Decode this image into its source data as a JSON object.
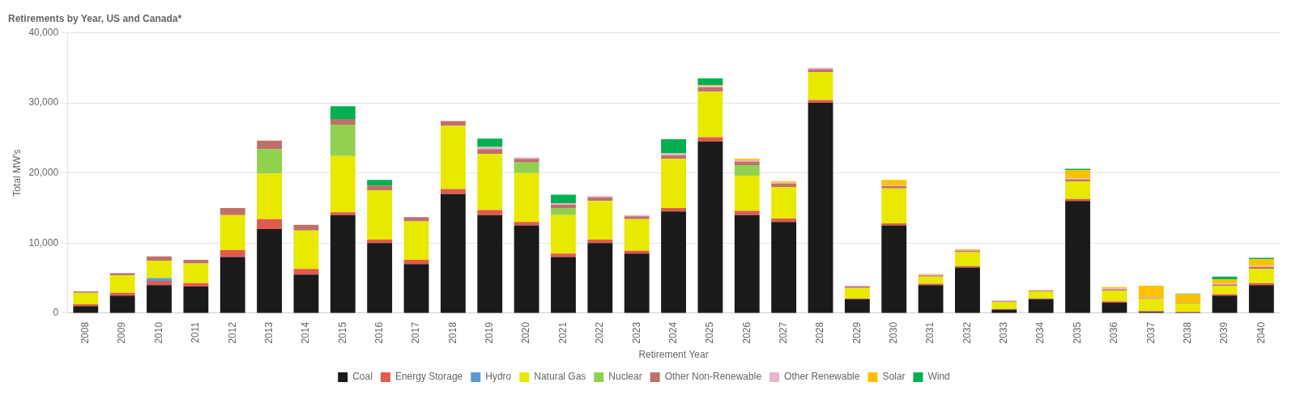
{
  "chart_data": {
    "type": "bar",
    "stacked": true,
    "title": "Retirements by Year, US and Canada*",
    "xlabel": "Retirement Year",
    "ylabel": "Total MW's",
    "categories": [
      2008,
      2009,
      2010,
      2011,
      2012,
      2013,
      2014,
      2015,
      2016,
      2017,
      2018,
      2019,
      2020,
      2021,
      2022,
      2023,
      2024,
      2025,
      2026,
      2027,
      2028,
      2029,
      2030,
      2031,
      2032,
      2033,
      2034,
      2035,
      2036,
      2037,
      2038,
      2039,
      2040
    ],
    "series": [
      {
        "name": "Coal",
        "color": "#1a1a1a",
        "values": [
          1000,
          2500,
          4000,
          3800,
          8000,
          12000,
          5500,
          14000,
          10000,
          7000,
          17000,
          14000,
          12500,
          8000,
          10000,
          8500,
          14500,
          24500,
          14000,
          13000,
          30000,
          2000,
          12500,
          4000,
          6500,
          500,
          2000,
          16000,
          1500,
          200,
          100,
          2500,
          4000
        ]
      },
      {
        "name": "Energy Storage",
        "color": "#e05a4e",
        "values": [
          300,
          400,
          600,
          500,
          1000,
          1400,
          800,
          400,
          500,
          600,
          700,
          700,
          500,
          500,
          500,
          400,
          500,
          600,
          600,
          500,
          400,
          100,
          300,
          200,
          200,
          100,
          100,
          300,
          200,
          100,
          100,
          200,
          300
        ]
      },
      {
        "name": "Hydro",
        "color": "#5b9bd5",
        "values": [
          0,
          0,
          400,
          0,
          0,
          0,
          0,
          0,
          0,
          0,
          0,
          0,
          0,
          0,
          0,
          0,
          0,
          0,
          0,
          0,
          0,
          0,
          0,
          0,
          0,
          0,
          0,
          0,
          0,
          0,
          0,
          0,
          0
        ]
      },
      {
        "name": "Natural Gas",
        "color": "#e8e800",
        "values": [
          1600,
          2500,
          2500,
          2800,
          5000,
          6500,
          5500,
          8000,
          7000,
          5500,
          9000,
          8000,
          7000,
          5500,
          5500,
          4500,
          7000,
          6500,
          5000,
          4500,
          4000,
          1500,
          5000,
          1000,
          2000,
          1000,
          1000,
          2500,
          1500,
          1800,
          1200,
          1200,
          2000
        ]
      },
      {
        "name": "Nuclear",
        "color": "#92d050",
        "values": [
          0,
          0,
          0,
          0,
          0,
          3500,
          0,
          4500,
          0,
          0,
          0,
          0,
          1500,
          1000,
          0,
          0,
          0,
          0,
          1500,
          0,
          0,
          0,
          0,
          0,
          0,
          0,
          0,
          0,
          0,
          0,
          0,
          0,
          0
        ]
      },
      {
        "name": "Other Non-Renewable",
        "color": "#c0706a",
        "values": [
          200,
          300,
          600,
          500,
          1000,
          1200,
          800,
          800,
          700,
          600,
          700,
          700,
          500,
          500,
          500,
          400,
          500,
          600,
          500,
          500,
          400,
          200,
          300,
          200,
          200,
          100,
          100,
          300,
          200,
          100,
          100,
          200,
          300
        ]
      },
      {
        "name": "Other Renewable",
        "color": "#e8b4d0",
        "values": [
          0,
          0,
          0,
          0,
          0,
          0,
          0,
          0,
          0,
          0,
          0,
          300,
          200,
          200,
          200,
          200,
          300,
          200,
          200,
          100,
          200,
          100,
          100,
          100,
          100,
          100,
          100,
          100,
          100,
          100,
          0,
          100,
          100
        ]
      },
      {
        "name": "Solar",
        "color": "#ffc000",
        "values": [
          0,
          0,
          0,
          0,
          0,
          0,
          0,
          0,
          0,
          0,
          0,
          0,
          0,
          0,
          0,
          0,
          0,
          100,
          200,
          200,
          0,
          0,
          800,
          100,
          100,
          0,
          0,
          1200,
          200,
          1600,
          1200,
          600,
          1000
        ]
      },
      {
        "name": "Wind",
        "color": "#00b050",
        "values": [
          0,
          0,
          0,
          0,
          0,
          0,
          0,
          1800,
          800,
          0,
          0,
          1200,
          0,
          1200,
          0,
          0,
          2000,
          1000,
          0,
          0,
          0,
          0,
          0,
          0,
          0,
          0,
          0,
          200,
          0,
          0,
          100,
          400,
          200
        ]
      }
    ],
    "ylim": [
      0,
      40000
    ],
    "yticks": [
      0,
      {
        "value": 10000,
        "label": "10,000"
      },
      {
        "value": 20000,
        "label": "20,000"
      },
      {
        "value": 30000,
        "label": "30,000"
      },
      {
        "value": 40000,
        "label": "40,000"
      }
    ],
    "grid": true,
    "legend": "bottom"
  }
}
